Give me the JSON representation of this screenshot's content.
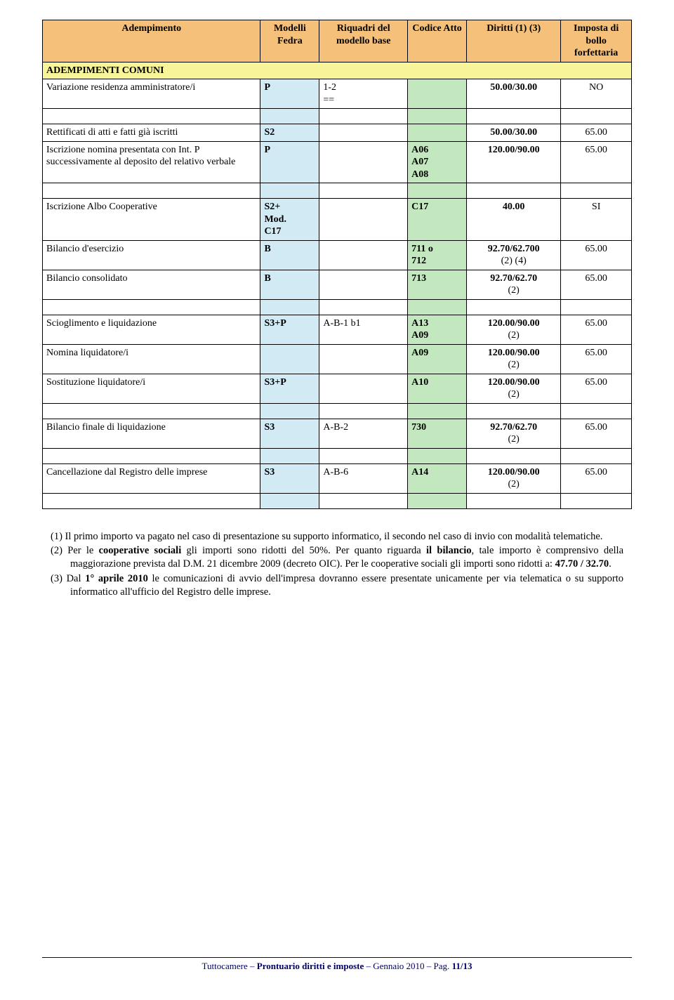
{
  "headers": {
    "c1": "Adempimento",
    "c2": "Modelli Fedra",
    "c3": "Riquadri del modello base",
    "c4": "Codice Atto",
    "c5": "Diritti (1) (3)",
    "c6": "Imposta di bollo forfettaria"
  },
  "section": "ADEMPIMENTI COMUNI",
  "rows": [
    {
      "c1": "Variazione residenza amministratore/i",
      "c2": "P",
      "c3": "1-2\n==",
      "c4": "",
      "c5": "50.00/30.00",
      "c6": "NO"
    },
    {
      "spacer": true
    },
    {
      "c1": "Rettificati di atti e fatti già iscritti",
      "c2": "S2",
      "c3": "",
      "c4": "",
      "c5": "50.00/30.00",
      "c6": "65.00"
    },
    {
      "c1": "Iscrizione nomina presentata con Int. P successivamente al deposito del relativo verbale",
      "c2": "P",
      "c3": "",
      "c4": "A06\nA07\nA08",
      "c5": "120.00/90.00",
      "c6": "65.00"
    },
    {
      "spacer": true
    },
    {
      "c1": "Iscrizione Albo Cooperative",
      "c2": "S2+\nMod.\nC17",
      "c3": "",
      "c4": "C17",
      "c5": "40.00",
      "c6": "SI"
    },
    {
      "c1": "Bilancio d'esercizio",
      "c2": "B",
      "c3": "",
      "c4": "711 o\n712",
      "c5": "92.70/62.700\n(2) (4)",
      "c6": "65.00"
    },
    {
      "c1": "Bilancio consolidato",
      "c2": "B",
      "c3": "",
      "c4": "713",
      "c5": "92.70/62.70\n(2)",
      "c6": "65.00"
    },
    {
      "spacer": true
    },
    {
      "c1": "Scioglimento e liquidazione",
      "c2": "S3+P",
      "c3": "A-B-1 b1",
      "c4": "A13\nA09",
      "c5": "120.00/90.00\n(2)",
      "c6": "65.00"
    },
    {
      "c1": "Nomina liquidatore/i",
      "c2": "",
      "c3": "",
      "c4": "A09",
      "c5": "120.00/90.00\n(2)",
      "c6": "65.00"
    },
    {
      "c1": "Sostituzione liquidatore/i",
      "c2": "S3+P",
      "c3": "",
      "c4": "A10",
      "c5": "120.00/90.00\n(2)",
      "c6": "65.00"
    },
    {
      "spacer": true
    },
    {
      "c1": "Bilancio finale di liquidazione",
      "c2": "S3",
      "c3": "A-B-2",
      "c4": "730",
      "c5": "92.70/62.70\n(2)",
      "c6": "65.00"
    },
    {
      "spacer": true
    },
    {
      "c1": "Cancellazione dal Registro delle imprese",
      "c2": "S3",
      "c3": "A-B-6",
      "c4": "A14",
      "c5": "120.00/90.00\n(2)",
      "c6": "65.00"
    },
    {
      "spacer": true
    }
  ],
  "notes": {
    "n1_a": "(1) Il primo importo va pagato nel caso di presentazione su supporto informatico, il secondo nel caso di invio con modalità telematiche.",
    "n2_a": "(2) Per le ",
    "n2_b": "cooperative sociali",
    "n2_c": " gli importi sono ridotti del 50%. Per quanto riguarda ",
    "n2_d": "il bilancio",
    "n2_e": ", tale importo è comprensivo della maggiorazione prevista dal D.M. 21 dicembre 2009 (decreto OIC). Per le cooperative sociali gli importi sono ridotti a: ",
    "n2_f": "47.70 / 32.70",
    "n2_g": ".",
    "n3_a": "(3) Dal ",
    "n3_b": "1° aprile 2010",
    "n3_c": " le comunicazioni di avvio dell'impresa dovranno essere presentate unicamente per via telematica o su supporto informatico all'ufficio del Registro delle imprese."
  },
  "footer": {
    "a": "Tuttocamere – ",
    "b": "Prontuario diritti e imposte",
    "c": " – Gennaio 2010 – Pag. ",
    "d": "11/13"
  },
  "col_widths": [
    "37%",
    "10%",
    "15%",
    "10%",
    "16%",
    "12%"
  ]
}
